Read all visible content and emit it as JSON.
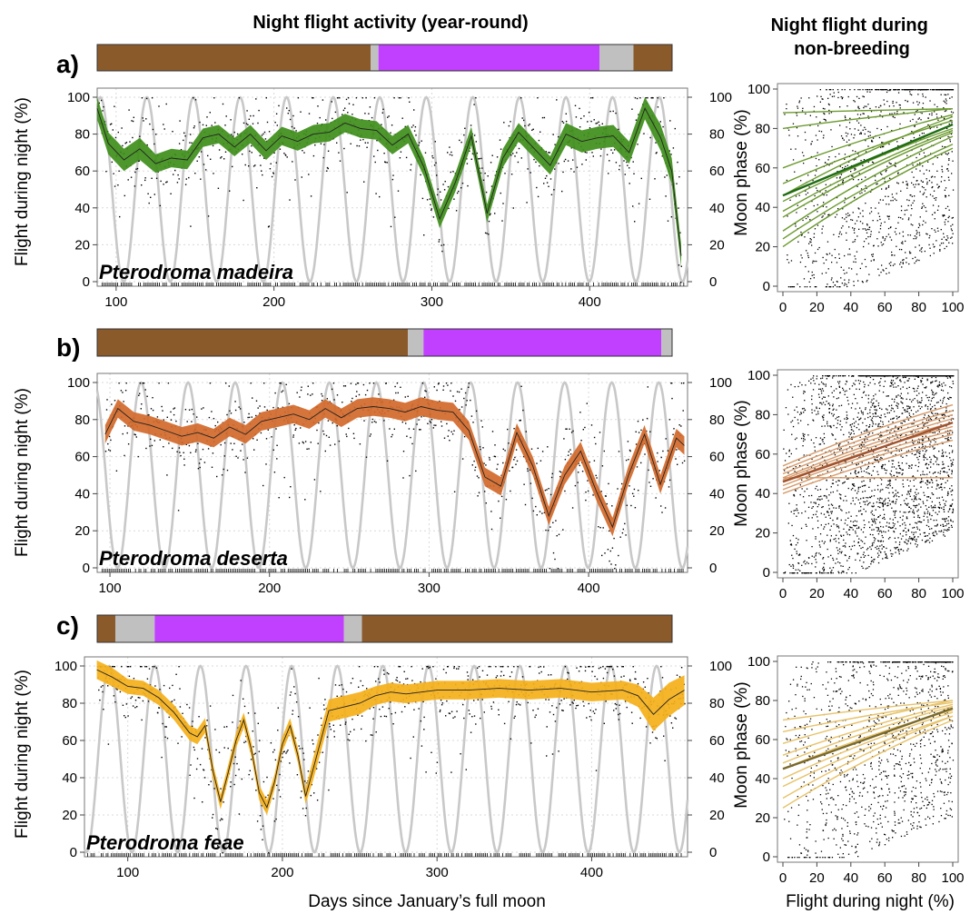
{
  "titles": {
    "year_round": "Night flight activity (year-round)",
    "non_breeding": "Night flight during non-breeding"
  },
  "colors": {
    "breeding_brown": "#8B5A2B",
    "transition_grey": "#C0C0C0",
    "nonbreeding_purple": "#C13FFF",
    "moon_line": "#C8C8C8",
    "madeira_band": "#3E8E1A",
    "deserta_band": "#D2692A",
    "feae_band": "#F5B01A"
  },
  "chart_data": [
    {
      "panel": "a)",
      "type": "line",
      "species": "Pterodroma madeira",
      "xlabel": "",
      "ylabel": "Flight during night (%)",
      "y2label": "Moon phase (%)",
      "xlim": [
        88,
        462
      ],
      "ylim": [
        0,
        100
      ],
      "xticks": [
        100,
        200,
        300,
        400
      ],
      "yticks": [
        0,
        20,
        40,
        60,
        80,
        100
      ],
      "moon_phase": {
        "period_days": 29.5,
        "first_full_moon_day": 90
      },
      "phase_bar": [
        {
          "phase": "breeding",
          "start": 88,
          "end": 265
        },
        {
          "phase": "transition",
          "start": 265,
          "end": 270
        },
        {
          "phase": "non-breeding",
          "start": 270,
          "end": 413
        },
        {
          "phase": "transition",
          "start": 413,
          "end": 435
        },
        {
          "phase": "breeding",
          "start": 435,
          "end": 460
        }
      ],
      "night_flight": {
        "x": [
          88,
          95,
          105,
          115,
          125,
          135,
          145,
          155,
          165,
          175,
          185,
          195,
          205,
          215,
          225,
          235,
          245,
          255,
          265,
          275,
          285,
          295,
          305,
          315,
          325,
          335,
          345,
          355,
          365,
          375,
          385,
          395,
          405,
          415,
          425,
          435,
          445,
          452,
          458
        ],
        "mean": [
          94,
          75,
          66,
          72,
          64,
          67,
          66,
          78,
          80,
          73,
          80,
          71,
          79,
          76,
          80,
          81,
          86,
          83,
          82,
          74,
          80,
          62,
          34,
          54,
          79,
          37,
          67,
          81,
          72,
          63,
          80,
          76,
          78,
          79,
          70,
          94,
          78,
          60,
          14
        ],
        "half_width": [
          6,
          6,
          6,
          6,
          5,
          5,
          5,
          5,
          5,
          5,
          5,
          5,
          5,
          5,
          5,
          5,
          5,
          5,
          5,
          5,
          5,
          5,
          5,
          5,
          5,
          5,
          5,
          5,
          5,
          5,
          6,
          6,
          6,
          6,
          6,
          6,
          7,
          7,
          6
        ]
      },
      "inset": {
        "xlabel": "",
        "ylabel": "",
        "xlim": [
          0,
          100
        ],
        "ylim": [
          0,
          100
        ],
        "xticks": [
          0,
          20,
          40,
          60,
          80,
          100
        ],
        "yticks": [
          0,
          20,
          40,
          60,
          80,
          100
        ],
        "line_color": "#6B9A2E",
        "mean_line": {
          "color": "#1F6B12",
          "y0": 46,
          "y100": 82
        },
        "lines": [
          [
            88,
            90
          ],
          [
            80,
            90
          ],
          [
            60,
            87
          ],
          [
            52,
            84
          ],
          [
            46,
            86
          ],
          [
            43,
            80
          ],
          [
            38,
            79
          ],
          [
            35,
            78
          ],
          [
            28,
            76
          ],
          [
            24,
            72
          ],
          [
            20,
            70
          ]
        ]
      }
    },
    {
      "panel": "b)",
      "type": "line",
      "species": "Pterodroma deserta",
      "xlabel": "",
      "ylabel": "Flight during night (%)",
      "y2label": "Moon phase (%)",
      "xlim": [
        92,
        462
      ],
      "ylim": [
        0,
        100
      ],
      "xticks": [
        100,
        200,
        300,
        400
      ],
      "yticks": [
        0,
        20,
        40,
        60,
        80,
        100
      ],
      "moon_phase": {
        "period_days": 29.5,
        "first_full_moon_day": 90
      },
      "phase_bar": [
        {
          "phase": "breeding",
          "start": 92,
          "end": 292
        },
        {
          "phase": "transition",
          "start": 292,
          "end": 302
        },
        {
          "phase": "non-breeding",
          "start": 302,
          "end": 455
        },
        {
          "phase": "transition",
          "start": 455,
          "end": 462
        }
      ],
      "night_flight": {
        "x": [
          97,
          105,
          115,
          125,
          135,
          145,
          155,
          165,
          175,
          185,
          195,
          205,
          215,
          225,
          235,
          245,
          255,
          265,
          275,
          285,
          295,
          305,
          315,
          325,
          335,
          345,
          355,
          365,
          375,
          385,
          395,
          405,
          415,
          425,
          435,
          445,
          455,
          460
        ],
        "mean": [
          72,
          86,
          79,
          77,
          74,
          71,
          73,
          70,
          76,
          72,
          79,
          81,
          83,
          80,
          86,
          81,
          86,
          87,
          86,
          84,
          87,
          85,
          84,
          74,
          49,
          44,
          73,
          55,
          28,
          50,
          63,
          41,
          22,
          50,
          72,
          45,
          70,
          66
        ],
        "half_width": [
          5,
          5,
          5,
          5,
          5,
          5,
          5,
          5,
          5,
          5,
          5,
          5,
          5,
          5,
          5,
          5,
          5,
          5,
          5,
          5,
          5,
          5,
          5,
          5,
          5,
          5,
          5,
          5,
          5,
          5,
          5,
          5,
          5,
          5,
          5,
          5,
          5,
          5
        ]
      },
      "inset": {
        "xlabel": "",
        "ylabel": "",
        "xlim": [
          0,
          100
        ],
        "ylim": [
          0,
          100
        ],
        "xticks": [
          0,
          20,
          40,
          60,
          80,
          100
        ],
        "yticks": [
          0,
          20,
          40,
          60,
          80,
          100
        ],
        "line_color": "#D69A6A",
        "mean_line": {
          "color": "#A0522D",
          "y0": 46,
          "y100": 76
        },
        "lines": [
          [
            54,
            85
          ],
          [
            52,
            82
          ],
          [
            50,
            80
          ],
          [
            48,
            78
          ],
          [
            47,
            76
          ],
          [
            46,
            74
          ],
          [
            44,
            72
          ],
          [
            42,
            70
          ],
          [
            40,
            67
          ],
          [
            48,
            48
          ]
        ]
      }
    },
    {
      "panel": "c)",
      "type": "line",
      "species": "Pterodroma feae",
      "xlabel": "Days since January’s full moon",
      "ylabel": "Flight during night (%)",
      "y2label": "Moon phase (%)",
      "xlim": [
        72,
        462
      ],
      "ylim": [
        0,
        100
      ],
      "xticks": [
        100,
        200,
        300,
        400
      ],
      "yticks": [
        0,
        20,
        40,
        60,
        80,
        100
      ],
      "moon_phase": {
        "period_days": 29.5,
        "first_full_moon_day": 88
      },
      "phase_bar": [
        {
          "phase": "breeding",
          "start": 80,
          "end": 92
        },
        {
          "phase": "transition",
          "start": 92,
          "end": 118
        },
        {
          "phase": "non-breeding",
          "start": 118,
          "end": 243
        },
        {
          "phase": "transition",
          "start": 243,
          "end": 255
        },
        {
          "phase": "breeding",
          "start": 255,
          "end": 460
        }
      ],
      "night_flight": {
        "x": [
          80,
          90,
          100,
          110,
          120,
          130,
          140,
          145,
          150,
          155,
          160,
          165,
          170,
          175,
          180,
          185,
          190,
          195,
          200,
          205,
          210,
          215,
          220,
          230,
          240,
          250,
          260,
          270,
          280,
          300,
          320,
          340,
          360,
          380,
          400,
          420,
          430,
          440,
          450,
          460
        ],
        "mean": [
          98,
          94,
          89,
          88,
          83,
          75,
          64,
          62,
          68,
          44,
          27,
          43,
          60,
          71,
          55,
          32,
          24,
          38,
          58,
          68,
          52,
          30,
          45,
          76,
          78,
          80,
          84,
          86,
          85,
          87,
          87,
          88,
          87,
          88,
          86,
          87,
          84,
          74,
          82,
          87
        ],
        "half_width": [
          5,
          5,
          4,
          4,
          4,
          4,
          4,
          4,
          4,
          4,
          4,
          4,
          4,
          4,
          4,
          4,
          4,
          4,
          4,
          4,
          4,
          4,
          6,
          6,
          6,
          6,
          5,
          5,
          5,
          5,
          5,
          5,
          5,
          5,
          5,
          5,
          6,
          9,
          9,
          8
        ]
      },
      "inset": {
        "xlabel": "Flight during night (%)",
        "ylabel": "",
        "xlim": [
          0,
          100
        ],
        "ylim": [
          0,
          100
        ],
        "xticks": [
          0,
          20,
          40,
          60,
          80,
          100
        ],
        "yticks": [
          0,
          20,
          40,
          60,
          80,
          100
        ],
        "line_color": "#E8C36A",
        "mean_line": {
          "color": "#7A6A2A",
          "y0": 45,
          "y100": 76
        },
        "lines": [
          [
            70,
            80
          ],
          [
            64,
            79
          ],
          [
            58,
            80
          ],
          [
            52,
            78
          ],
          [
            48,
            77
          ],
          [
            45,
            75
          ],
          [
            40,
            74
          ],
          [
            36,
            72
          ],
          [
            30,
            72
          ],
          [
            25,
            70
          ]
        ]
      }
    }
  ]
}
